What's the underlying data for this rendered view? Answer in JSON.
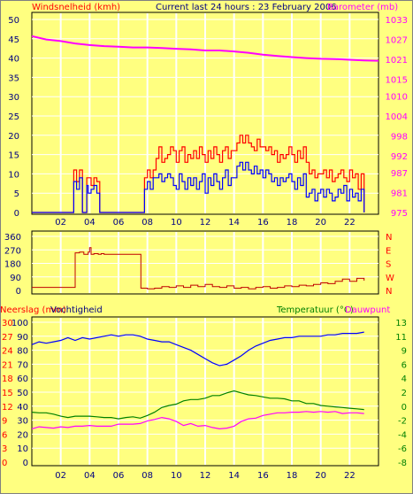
{
  "header": {
    "left_title": "Windsnelheid (kmh)",
    "center_title": "Current last 24 hours : 23 February 2006",
    "right_title": "Barometer (mb)"
  },
  "colors": {
    "background": "#ffff80",
    "plot_background": "#ffff80",
    "grid": "#ffffff",
    "wind_gust": "#ff0000",
    "wind_avg": "#0000ff",
    "barometer": "#ff00ff",
    "wind_dir": "#c00000",
    "humidity": "#0000ff",
    "temperature": "#008000",
    "dewpoint": "#ff00ff",
    "left_axis_text": "#ff0000",
    "right_axis_text": "#ff00ff",
    "label_dark": "#000080",
    "temp_axis_text": "#008000"
  },
  "x_ticks": [
    "02",
    "04",
    "06",
    "08",
    "10",
    "12",
    "14",
    "16",
    "18",
    "20",
    "22"
  ],
  "chart_data": [
    {
      "type": "line",
      "panel": "wind-barometer",
      "ylabel_left": "Windsnelheid (kmh)",
      "ylabel_right": "Barometer (mb)",
      "x_range": [
        0,
        24
      ],
      "ylim_left": [
        0,
        50
      ],
      "yticks_left": [
        "0",
        "5",
        "10",
        "15",
        "20",
        "25",
        "30",
        "35",
        "40",
        "45",
        "50"
      ],
      "ylim_right": [
        975,
        1033
      ],
      "yticks_right": [
        "975",
        "981",
        "987",
        "992",
        "998",
        "1004",
        "1010",
        "1015",
        "1021",
        "1027",
        "1033"
      ],
      "barometer": {
        "x": [
          0,
          1,
          2,
          3,
          4,
          5,
          6,
          7,
          8,
          9,
          10,
          11,
          12,
          13,
          14,
          15,
          16,
          17,
          18,
          19,
          20,
          21,
          22,
          23,
          24
        ],
        "y": [
          1028,
          1027,
          1026.5,
          1025.8,
          1025.3,
          1025,
          1024.8,
          1024.6,
          1024.6,
          1024.4,
          1024.2,
          1024,
          1023.7,
          1023.7,
          1023.4,
          1023,
          1022.4,
          1022,
          1021.7,
          1021.4,
          1021.2,
          1021.1,
          1020.9,
          1020.7,
          1020.6
        ]
      },
      "wind_gust": {
        "x": [
          0,
          1,
          2,
          2.7,
          2.9,
          3.1,
          3.3,
          3.5,
          3.7,
          3.8,
          3.9,
          4.1,
          4.3,
          4.5,
          4.7,
          5,
          6,
          7,
          7.6,
          7.8,
          8,
          8.2,
          8.4,
          8.6,
          8.8,
          9,
          9.2,
          9.4,
          9.6,
          9.8,
          10,
          10.2,
          10.4,
          10.6,
          10.8,
          11,
          11.2,
          11.4,
          11.6,
          11.8,
          12,
          12.2,
          12.4,
          12.6,
          12.8,
          13,
          13.2,
          13.4,
          13.6,
          13.8,
          14,
          14.2,
          14.4,
          14.6,
          14.8,
          15,
          15.2,
          15.4,
          15.6,
          15.8,
          16,
          16.2,
          16.4,
          16.6,
          16.8,
          17,
          17.2,
          17.4,
          17.6,
          17.8,
          18,
          18.2,
          18.4,
          18.6,
          18.8,
          19,
          19.2,
          19.4,
          19.6,
          19.8,
          20,
          20.2,
          20.4,
          20.6,
          20.8,
          21,
          21.2,
          21.4,
          21.6,
          21.8,
          22,
          22.2,
          22.4,
          22.6,
          22.8,
          23
        ],
        "y": [
          0,
          0,
          0,
          0,
          11,
          8,
          11,
          0,
          0,
          9,
          9,
          7,
          9,
          8,
          0,
          0,
          0,
          0,
          0,
          9,
          11,
          9,
          11,
          14,
          17,
          13,
          14,
          15,
          17,
          16,
          13,
          16,
          17,
          13,
          15,
          14,
          16,
          14,
          17,
          15,
          13,
          16,
          14,
          17,
          15,
          13,
          16,
          17,
          14,
          16,
          16,
          18,
          20,
          18,
          20,
          18,
          17,
          16,
          19,
          17,
          17,
          16,
          17,
          15,
          16,
          13,
          15,
          14,
          15,
          17,
          15,
          13,
          16,
          14,
          17,
          13,
          10,
          11,
          9,
          10,
          10,
          11,
          9,
          11,
          8,
          9,
          10,
          11,
          9,
          8,
          11,
          9,
          10,
          6,
          10,
          0
        ]
      },
      "wind_avg": {
        "x": [
          0,
          1,
          2,
          2.7,
          2.9,
          3.1,
          3.3,
          3.5,
          3.7,
          3.8,
          3.9,
          4.1,
          4.3,
          4.5,
          4.7,
          5,
          6,
          7,
          7.6,
          7.8,
          8,
          8.2,
          8.4,
          8.6,
          8.8,
          9,
          9.2,
          9.4,
          9.6,
          9.8,
          10,
          10.2,
          10.4,
          10.6,
          10.8,
          11,
          11.2,
          11.4,
          11.6,
          11.8,
          12,
          12.2,
          12.4,
          12.6,
          12.8,
          13,
          13.2,
          13.4,
          13.6,
          13.8,
          14,
          14.2,
          14.4,
          14.6,
          14.8,
          15,
          15.2,
          15.4,
          15.6,
          15.8,
          16,
          16.2,
          16.4,
          16.6,
          16.8,
          17,
          17.2,
          17.4,
          17.6,
          17.8,
          18,
          18.2,
          18.4,
          18.6,
          18.8,
          19,
          19.2,
          19.4,
          19.6,
          19.8,
          20,
          20.2,
          20.4,
          20.6,
          20.8,
          21,
          21.2,
          21.4,
          21.6,
          21.8,
          22,
          22.2,
          22.4,
          22.6,
          22.8,
          23
        ],
        "y": [
          0,
          0,
          0,
          0,
          8,
          6,
          9,
          0,
          0,
          7,
          5,
          6,
          7,
          5,
          0,
          0,
          0,
          0,
          0,
          6,
          8,
          6,
          9,
          9,
          10,
          8,
          9,
          10,
          9,
          7,
          6,
          10,
          8,
          6,
          9,
          7,
          9,
          6,
          8,
          10,
          5,
          9,
          7,
          10,
          8,
          6,
          9,
          11,
          7,
          9,
          9,
          12,
          13,
          11,
          13,
          11,
          10,
          12,
          10,
          11,
          9,
          11,
          10,
          8,
          9,
          7,
          9,
          8,
          9,
          10,
          8,
          6,
          9,
          7,
          10,
          4,
          5,
          6,
          3,
          5,
          6,
          4,
          6,
          5,
          3,
          4,
          6,
          5,
          7,
          3,
          6,
          4,
          5,
          3,
          6,
          0
        ]
      }
    },
    {
      "type": "line",
      "panel": "wind-direction",
      "ylim": [
        0,
        360
      ],
      "yticks": [
        "0",
        "90",
        "180",
        "270",
        "360"
      ],
      "direction_labels": [
        "N",
        "W",
        "S",
        "E",
        "N"
      ],
      "x_range": [
        0,
        24
      ],
      "wind_dir": {
        "x": [
          0,
          1,
          2,
          2.9,
          3,
          3.3,
          3.6,
          3.9,
          4,
          4.1,
          4.3,
          4.6,
          4.8,
          5,
          6,
          7,
          7.5,
          7.55,
          8,
          8.5,
          9,
          9.5,
          10,
          10.5,
          11,
          11.5,
          12,
          12.5,
          13,
          13.5,
          14,
          14.5,
          15,
          15.5,
          16,
          16.5,
          17,
          17.5,
          18,
          18.5,
          19,
          19.5,
          20,
          20.5,
          21,
          21.5,
          22,
          22.5,
          23
        ],
        "y": [
          20,
          20,
          20,
          20,
          250,
          255,
          240,
          255,
          285,
          240,
          245,
          240,
          245,
          240,
          240,
          240,
          240,
          15,
          10,
          15,
          25,
          20,
          30,
          20,
          35,
          25,
          40,
          25,
          20,
          30,
          15,
          20,
          10,
          20,
          25,
          15,
          20,
          30,
          25,
          35,
          30,
          40,
          50,
          45,
          60,
          75,
          60,
          80,
          65
        ]
      }
    },
    {
      "type": "line",
      "panel": "rain-humidity-temperature",
      "ylabel_left": "Neerslag (mm)",
      "ylabel_left2": "Vochtigheid",
      "ylabel_right": "Temperatuur (°C)",
      "ylabel_right2": "Dauwpunt",
      "x_range": [
        0,
        24
      ],
      "ylim_humidity": [
        0,
        100
      ],
      "yticks_humidity": [
        "0",
        "10",
        "20",
        "30",
        "40",
        "50",
        "60",
        "70",
        "80",
        "90",
        "100"
      ],
      "yticks_rain": [
        "0",
        "3",
        "6",
        "9",
        "12",
        "15",
        "18",
        "21",
        "24",
        "27",
        "30"
      ],
      "ylim_temp": [
        -8,
        13
      ],
      "yticks_temp": [
        "-8",
        "-6",
        "-4",
        "-2",
        "0",
        "2",
        "4",
        "6",
        "9",
        "11",
        "13"
      ],
      "humidity": {
        "x": [
          0,
          0.5,
          1,
          1.5,
          2,
          2.5,
          3,
          3.5,
          4,
          4.5,
          5,
          5.5,
          6,
          6.5,
          7,
          7.5,
          8,
          8.5,
          9,
          9.5,
          10,
          10.5,
          11,
          11.5,
          12,
          12.5,
          13,
          13.5,
          14,
          14.5,
          15,
          15.5,
          16,
          16.5,
          17,
          17.5,
          18,
          18.5,
          19,
          19.5,
          20,
          20.5,
          21,
          21.5,
          22,
          22.5,
          23
        ],
        "y": [
          84,
          86,
          85,
          86,
          87,
          89,
          87,
          89,
          88,
          89,
          90,
          91,
          90,
          91,
          91,
          90,
          88,
          87,
          86,
          86,
          84,
          82,
          80,
          77,
          74,
          71,
          69,
          70,
          73,
          76,
          80,
          83,
          85,
          87,
          88,
          89,
          89,
          90,
          90,
          90,
          90,
          91,
          91,
          92,
          92,
          92,
          93
        ]
      },
      "temperature": {
        "x": [
          0,
          0.5,
          1,
          1.5,
          2,
          2.5,
          3,
          3.5,
          4,
          4.5,
          5,
          5.5,
          6,
          6.5,
          7,
          7.5,
          8,
          8.5,
          9,
          9.5,
          10,
          10.5,
          11,
          11.5,
          12,
          12.5,
          13,
          13.5,
          14,
          14.5,
          15,
          15.5,
          16,
          16.5,
          17,
          17.5,
          18,
          18.5,
          19,
          19.5,
          20,
          20.5,
          21,
          21.5,
          22,
          22.5,
          23
        ],
        "y": [
          -0.5,
          -0.6,
          -0.6,
          -0.8,
          -1.1,
          -1.3,
          -1.1,
          -1.1,
          -1.1,
          -1.2,
          -1.3,
          -1.3,
          -1.5,
          -1.3,
          -1.2,
          -1.4,
          -1.0,
          -0.5,
          0.2,
          0.5,
          0.7,
          1.2,
          1.4,
          1.4,
          1.6,
          2.0,
          2.0,
          2.4,
          2.7,
          2.4,
          2.1,
          2.0,
          1.8,
          1.6,
          1.6,
          1.5,
          1.2,
          1.2,
          0.8,
          0.8,
          0.5,
          0.4,
          0.3,
          0.2,
          0.1,
          0.0,
          -0.1
        ]
      },
      "dewpoint": {
        "x": [
          0,
          0.5,
          1,
          1.5,
          2,
          2.5,
          3,
          3.5,
          4,
          4.5,
          5,
          5.5,
          6,
          6.5,
          7,
          7.5,
          8,
          8.5,
          9,
          9.5,
          10,
          10.5,
          11,
          11.5,
          12,
          12.5,
          13,
          13.5,
          14,
          14.5,
          15,
          15.5,
          16,
          16.5,
          17,
          17.5,
          18,
          18.5,
          19,
          19.5,
          20,
          20.5,
          21,
          21.5,
          22,
          22.5,
          23
        ],
        "y": [
          -3.0,
          -2.7,
          -2.8,
          -2.9,
          -2.7,
          -2.8,
          -2.6,
          -2.6,
          -2.5,
          -2.6,
          -2.6,
          -2.6,
          -2.3,
          -2.3,
          -2.3,
          -2.2,
          -1.8,
          -1.6,
          -1.3,
          -1.5,
          -1.9,
          -2.5,
          -2.2,
          -2.6,
          -2.5,
          -2.8,
          -3.0,
          -2.9,
          -2.6,
          -1.9,
          -1.5,
          -1.4,
          -1.0,
          -0.8,
          -0.6,
          -0.6,
          -0.5,
          -0.5,
          -0.4,
          -0.5,
          -0.4,
          -0.5,
          -0.4,
          -0.7,
          -0.6,
          -0.6,
          -0.7
        ]
      }
    }
  ]
}
